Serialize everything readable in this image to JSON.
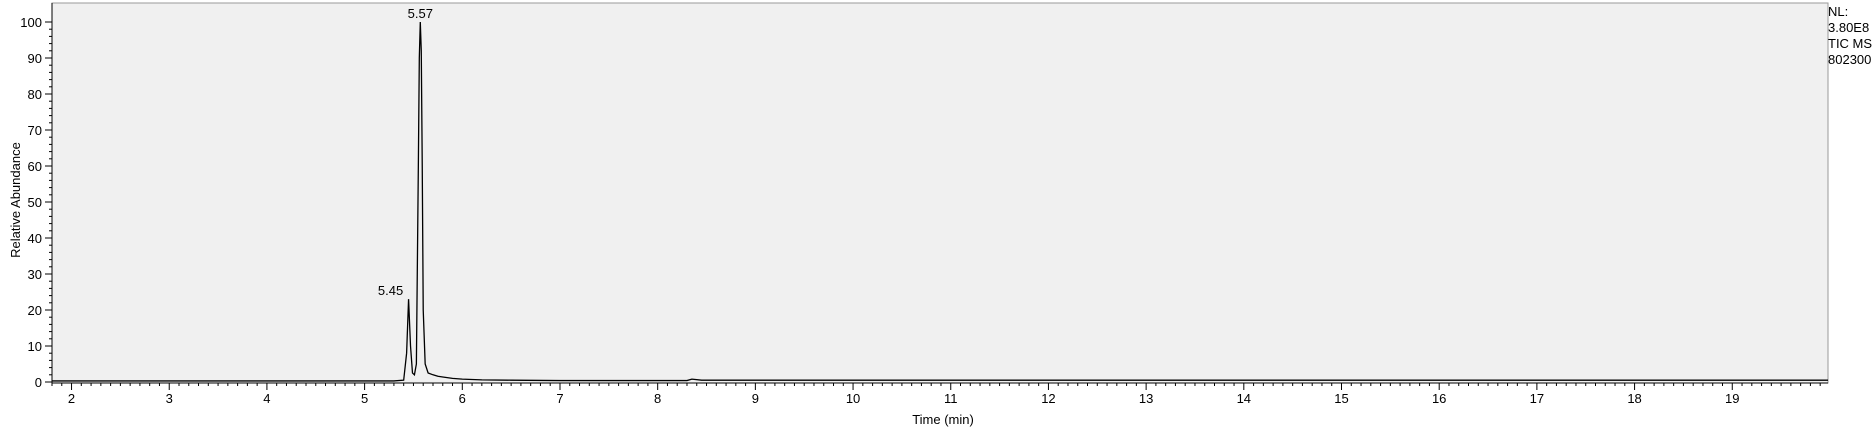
{
  "info": {
    "nl_label": "NL:",
    "nl_value": "3.80E8",
    "scan_filter": "TIC  MS",
    "sample_id": "802300"
  },
  "chart_data": {
    "type": "line",
    "title": "",
    "xlabel": "Time (min)",
    "ylabel": "Relative Abundance",
    "xlim": [
      1.8,
      19.98
    ],
    "ylim": [
      0,
      100
    ],
    "x_ticks": [
      2,
      3,
      4,
      5,
      6,
      7,
      8,
      9,
      10,
      11,
      12,
      13,
      14,
      15,
      16,
      17,
      18,
      19
    ],
    "y_ticks": [
      0,
      10,
      20,
      30,
      40,
      50,
      60,
      70,
      80,
      90,
      100
    ],
    "grid": false,
    "plot_background": "#f0f0f0",
    "line_color": "#000000",
    "peak_labels": [
      {
        "x": 5.45,
        "y": 23,
        "text": "5.45"
      },
      {
        "x": 5.57,
        "y": 100,
        "text": "5.57"
      }
    ],
    "series": [
      {
        "x": [
          1.8,
          2.5,
          3.5,
          4.5,
          5.0,
          5.3,
          5.4,
          5.43,
          5.45,
          5.47,
          5.49,
          5.51,
          5.53,
          5.55,
          5.56,
          5.57,
          5.58,
          5.59,
          5.6,
          5.62,
          5.65,
          5.7,
          5.75,
          5.8,
          5.9,
          6.0,
          6.2,
          6.5,
          7.0,
          7.5,
          8.0,
          8.3,
          8.35,
          8.45,
          9.0,
          10.0,
          12.0,
          14.0,
          16.0,
          18.0,
          19.98
        ],
        "y": [
          0.3,
          0.3,
          0.3,
          0.3,
          0.3,
          0.3,
          0.5,
          8,
          23,
          10,
          2.5,
          2,
          5,
          60,
          90,
          100,
          92,
          60,
          20,
          5,
          2.5,
          2,
          1.6,
          1.4,
          1.0,
          0.8,
          0.6,
          0.5,
          0.4,
          0.4,
          0.4,
          0.4,
          0.8,
          0.5,
          0.5,
          0.5,
          0.5,
          0.5,
          0.5,
          0.5,
          0.5
        ]
      }
    ]
  }
}
